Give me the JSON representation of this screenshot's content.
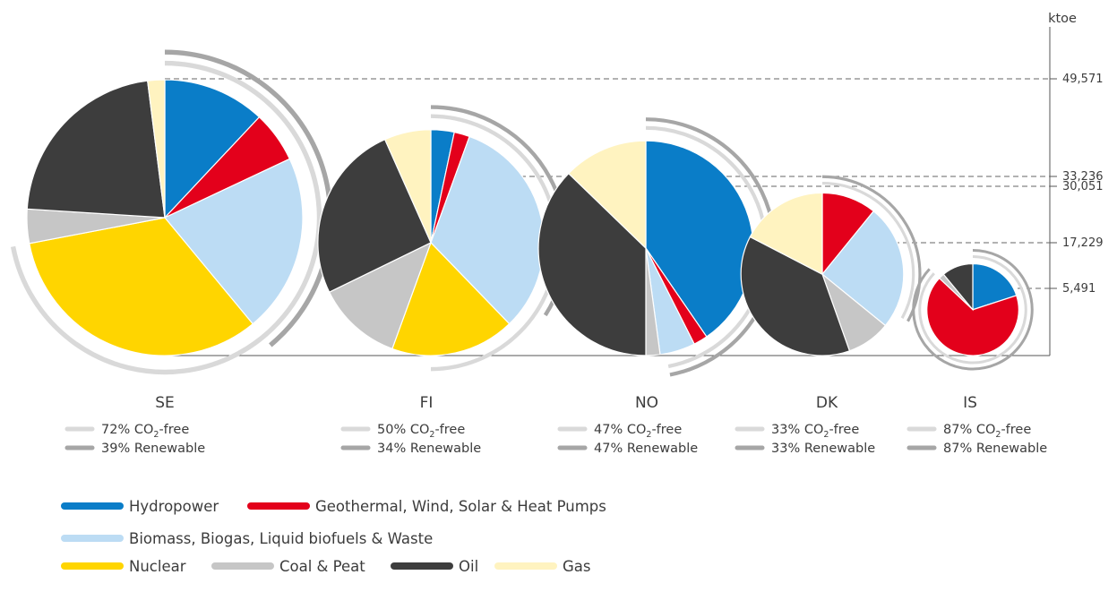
{
  "chart_data": {
    "type": "pie",
    "unit": "ktoe",
    "y_ticks": [
      "49,571",
      "33,236",
      "30,051",
      "17,229",
      "5,491"
    ],
    "categories": [
      {
        "key": "hydro",
        "label": "Hydropower",
        "color": "#0a7dc8"
      },
      {
        "key": "geo",
        "label": "Geothermal, Wind, Solar & Heat Pumps",
        "color": "#e3001b"
      },
      {
        "key": "bio",
        "label": "Biomass, Biogas, Liquid biofuels & Waste",
        "color": "#bcdcf4"
      },
      {
        "key": "nuclear",
        "label": "Nuclear",
        "color": "#ffd500"
      },
      {
        "key": "coal",
        "label": "Coal & Peat",
        "color": "#c6c6c6"
      },
      {
        "key": "oil",
        "label": "Oil",
        "color": "#3d3d3d"
      },
      {
        "key": "gas",
        "label": "Gas",
        "color": "#fff3c0"
      }
    ],
    "status_colors": {
      "co2_free": "#d9d9d9",
      "renewable": "#a6a6a6"
    },
    "countries": [
      {
        "code": "SE",
        "total": 49571,
        "co2_free_label": "72% CO",
        "co2_free_suffix": "-free",
        "co2_free_pct": 72,
        "renewable_label": "39% Renewable",
        "renewable_pct": 39,
        "shares": {
          "hydro": 12,
          "geo": 6,
          "bio": 21,
          "nuclear": 33,
          "coal": 4,
          "oil": 22,
          "gas": 2
        }
      },
      {
        "code": "FI",
        "total": 33236,
        "co2_free_label": "50% CO",
        "co2_free_suffix": "-free",
        "co2_free_pct": 50,
        "renewable_label": "34% Renewable",
        "renewable_pct": 34,
        "shares": {
          "hydro": 3,
          "geo": 2,
          "bio": 29,
          "nuclear": 16,
          "coal": 11,
          "oil": 23,
          "gas": 6
        }
      },
      {
        "code": "NO",
        "total": 30051,
        "co2_free_label": "47% CO",
        "co2_free_suffix": "-free",
        "co2_free_pct": 47,
        "renewable_label": "47% Renewable",
        "renewable_pct": 47,
        "shares": {
          "hydro": 38,
          "geo": 2,
          "bio": 5,
          "nuclear": 0,
          "coal": 2,
          "oil": 35,
          "gas": 12
        }
      },
      {
        "code": "DK",
        "total": 17229,
        "co2_free_label": "33% CO",
        "co2_free_suffix": "-free",
        "co2_free_pct": 33,
        "renewable_label": "33% Renewable",
        "renewable_pct": 33,
        "shares": {
          "hydro": 0,
          "geo": 10,
          "bio": 23,
          "nuclear": 0,
          "coal": 8,
          "oil": 35,
          "gas": 16
        }
      },
      {
        "code": "IS",
        "total": 5491,
        "co2_free_label": "87% CO",
        "co2_free_suffix": "-free",
        "co2_free_pct": 87,
        "renewable_label": "87% Renewable",
        "renewable_pct": 87,
        "shares": {
          "hydro": 20,
          "geo": 67,
          "bio": 0,
          "nuclear": 0,
          "coal": 2,
          "oil": 11,
          "gas": 0
        }
      }
    ]
  }
}
